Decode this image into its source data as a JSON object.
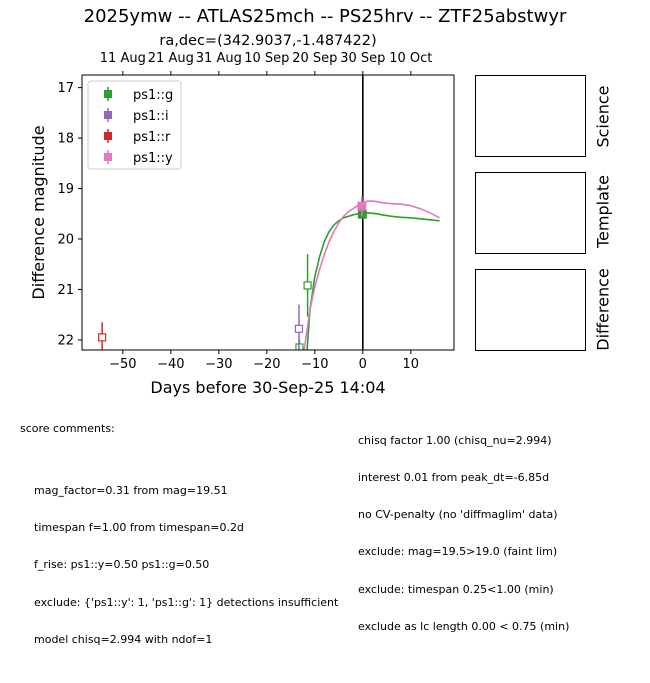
{
  "title": "2025ymw -- ATLAS25mch -- PS25hrv -- ZTF25abstwyr",
  "subtitle": "ra,dec=(342.9037,-1.487422)",
  "side_panels": [
    "Science",
    "Template",
    "Difference"
  ],
  "comments_left": {
    "header": "score comments:",
    "lines": [
      "mag_factor=0.31 from mag=19.51",
      "timespan f=1.00 from timespan=0.2d",
      "f_rise: ps1::y=0.50 ps1::g=0.50",
      "exclude: {'ps1::y': 1, 'ps1::g': 1} detections insufficient",
      "model chisq=2.994 with ndof=1"
    ]
  },
  "comments_right": [
    "chisq factor 1.00 (chisq_nu=2.994)",
    "interest 0.01 from peak_dt=-6.85d",
    "no CV-penalty (no 'diffmaglim' data)",
    "exclude: mag=19.5>19.0 (faint lim)",
    "exclude: timespan 0.25<1.00 (min)",
    "exclude as lc length 0.00 < 0.75 (min)"
  ],
  "chart_data": {
    "type": "scatter",
    "xlabel": "Days before 30-Sep-25 14:04",
    "ylabel": "Difference magnitude",
    "xlim": [
      -58.5,
      19
    ],
    "ylim": [
      22.2,
      16.75
    ],
    "y_inverted": true,
    "x_ticks": [
      -50,
      -40,
      -30,
      -20,
      -10,
      0,
      10
    ],
    "y_ticks": [
      17,
      18,
      19,
      20,
      21,
      22
    ],
    "top_axis_ticks": [
      {
        "label": "11 Aug",
        "x": -50
      },
      {
        "label": "21 Aug",
        "x": -40
      },
      {
        "label": "31 Aug",
        "x": -30
      },
      {
        "label": "10 Sep",
        "x": -20
      },
      {
        "label": "20 Sep",
        "x": -10
      },
      {
        "label": "30 Sep",
        "x": 0
      },
      {
        "label": "10 Oct",
        "x": 10
      }
    ],
    "vline_x": 0,
    "legend_position": "upper-left",
    "series": [
      {
        "name": "ps1::g",
        "color": "#2ca02c",
        "points": [
          {
            "x": -0.1,
            "y": 19.51,
            "err": 0.05,
            "filled": true
          }
        ],
        "upper_limits": [
          {
            "x": -11.5,
            "y": 20.92,
            "err": 0.62
          },
          {
            "x": -13.2,
            "y": 22.15,
            "err": 0.15
          }
        ],
        "model": [
          [
            -11.6,
            22.2
          ],
          [
            -11,
            21.4
          ],
          [
            -10,
            20.75
          ],
          [
            -9,
            20.35
          ],
          [
            -8,
            20.05
          ],
          [
            -7,
            19.85
          ],
          [
            -6,
            19.72
          ],
          [
            -5,
            19.64
          ],
          [
            -4,
            19.58
          ],
          [
            -3,
            19.55
          ],
          [
            -2,
            19.52
          ],
          [
            -1,
            19.5
          ],
          [
            0,
            19.49
          ],
          [
            1,
            19.48
          ],
          [
            2,
            19.49
          ],
          [
            3,
            19.5
          ],
          [
            4,
            19.52
          ],
          [
            6,
            19.55
          ],
          [
            8,
            19.57
          ],
          [
            10,
            19.58
          ],
          [
            12,
            19.6
          ],
          [
            14,
            19.62
          ],
          [
            16,
            19.64
          ]
        ]
      },
      {
        "name": "ps1::i",
        "color": "#9467bd",
        "points": [],
        "upper_limits": [
          {
            "x": -13.3,
            "y": 21.78,
            "err": 0.48
          }
        ],
        "model": []
      },
      {
        "name": "ps1::r",
        "color": "#d62728",
        "points": [],
        "upper_limits": [
          {
            "x": -54.3,
            "y": 21.95,
            "err": 0.3
          }
        ],
        "model": []
      },
      {
        "name": "ps1::y",
        "color": "#e377c2",
        "points": [
          {
            "x": -0.2,
            "y": 19.35,
            "err": 0.2,
            "filled": true
          }
        ],
        "upper_limits": [],
        "model": [
          [
            -12.2,
            22.2
          ],
          [
            -11,
            21.4
          ],
          [
            -10,
            20.95
          ],
          [
            -9,
            20.6
          ],
          [
            -8,
            20.3
          ],
          [
            -7,
            20.05
          ],
          [
            -6,
            19.85
          ],
          [
            -5,
            19.68
          ],
          [
            -4,
            19.55
          ],
          [
            -3,
            19.46
          ],
          [
            -2,
            19.4
          ],
          [
            -1,
            19.33
          ],
          [
            0,
            19.28
          ],
          [
            1,
            19.25
          ],
          [
            2,
            19.25
          ],
          [
            3,
            19.26
          ],
          [
            4,
            19.28
          ],
          [
            6,
            19.3
          ],
          [
            8,
            19.31
          ],
          [
            10,
            19.34
          ],
          [
            12,
            19.4
          ],
          [
            14,
            19.48
          ],
          [
            16,
            19.58
          ]
        ]
      }
    ]
  }
}
